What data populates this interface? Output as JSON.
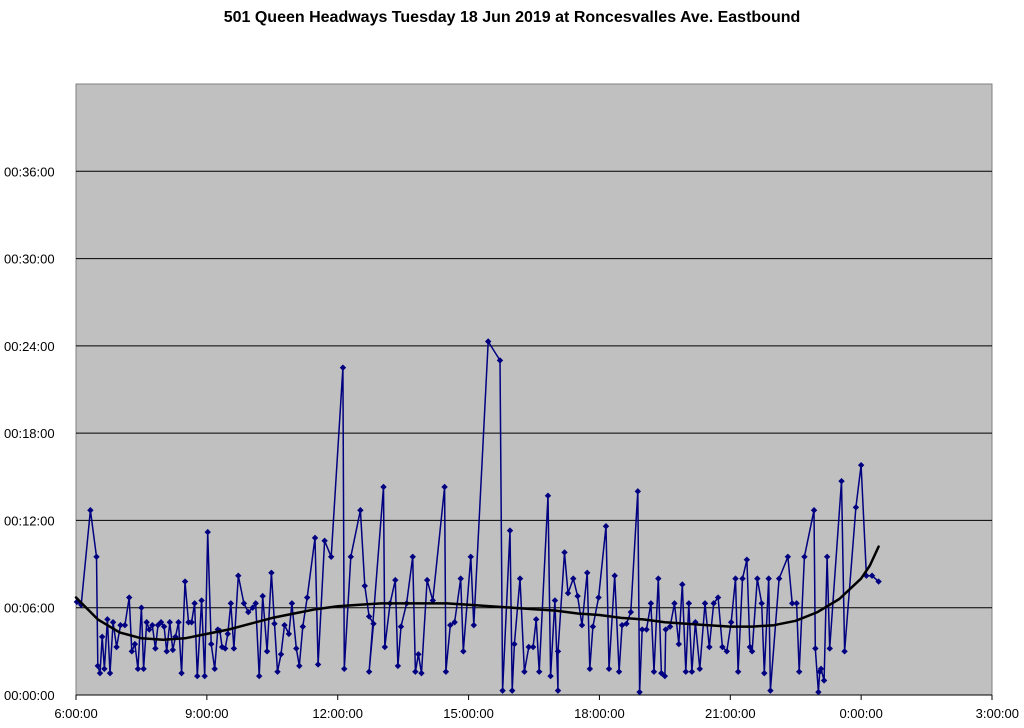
{
  "chart_data": {
    "type": "line",
    "title": "501 Queen Headways Tuesday 18 Jun 2019 at Roncesvalles Ave. Eastbound",
    "xlabel": "",
    "ylabel": "",
    "x_unit": "hours",
    "y_unit": "minutes",
    "xlim": [
      6,
      27
    ],
    "ylim": [
      0,
      42
    ],
    "x_ticks": [
      {
        "value": 6,
        "label": "6:00:00"
      },
      {
        "value": 9,
        "label": "9:00:00"
      },
      {
        "value": 12,
        "label": "12:00:00"
      },
      {
        "value": 15,
        "label": "15:00:00"
      },
      {
        "value": 18,
        "label": "18:00:00"
      },
      {
        "value": 21,
        "label": "21:00:00"
      },
      {
        "value": 24,
        "label": "0:00:00"
      },
      {
        "value": 27,
        "label": "3:00:00"
      }
    ],
    "y_ticks": [
      {
        "value": 0,
        "label": "00:00:00"
      },
      {
        "value": 6,
        "label": "00:06:00"
      },
      {
        "value": 12,
        "label": "00:12:00"
      },
      {
        "value": 18,
        "label": "00:18:00"
      },
      {
        "value": 24,
        "label": "00:24:00"
      },
      {
        "value": 30,
        "label": "00:30:00"
      },
      {
        "value": 36,
        "label": "00:36:00"
      }
    ],
    "grid": true,
    "plot_bg": "#c0c0c0",
    "series": [
      {
        "style": "headways",
        "color": "#000080",
        "points": [
          [
            6.02,
            6.4
          ],
          [
            6.12,
            6.2
          ],
          [
            6.33,
            12.7
          ],
          [
            6.47,
            9.5
          ],
          [
            6.5,
            2.0
          ],
          [
            6.55,
            1.5
          ],
          [
            6.6,
            4.0
          ],
          [
            6.65,
            1.8
          ],
          [
            6.72,
            5.2
          ],
          [
            6.78,
            1.5
          ],
          [
            6.85,
            5.0
          ],
          [
            6.93,
            3.3
          ],
          [
            7.02,
            4.8
          ],
          [
            7.12,
            4.8
          ],
          [
            7.22,
            6.7
          ],
          [
            7.28,
            3.0
          ],
          [
            7.35,
            3.5
          ],
          [
            7.42,
            1.8
          ],
          [
            7.5,
            6.0
          ],
          [
            7.55,
            1.8
          ],
          [
            7.62,
            5.0
          ],
          [
            7.68,
            4.5
          ],
          [
            7.75,
            4.8
          ],
          [
            7.82,
            3.2
          ],
          [
            7.88,
            4.8
          ],
          [
            7.95,
            5.0
          ],
          [
            8.02,
            4.7
          ],
          [
            8.08,
            3.0
          ],
          [
            8.15,
            5.0
          ],
          [
            8.22,
            3.1
          ],
          [
            8.28,
            4.0
          ],
          [
            8.35,
            5.0
          ],
          [
            8.42,
            1.5
          ],
          [
            8.5,
            7.8
          ],
          [
            8.58,
            5.0
          ],
          [
            8.65,
            5.0
          ],
          [
            8.72,
            6.3
          ],
          [
            8.78,
            1.3
          ],
          [
            8.88,
            6.5
          ],
          [
            8.95,
            1.3
          ],
          [
            9.02,
            11.2
          ],
          [
            9.1,
            3.5
          ],
          [
            9.18,
            1.8
          ],
          [
            9.25,
            4.5
          ],
          [
            9.3,
            4.4
          ],
          [
            9.35,
            3.3
          ],
          [
            9.42,
            3.2
          ],
          [
            9.48,
            4.2
          ],
          [
            9.55,
            6.3
          ],
          [
            9.62,
            3.2
          ],
          [
            9.72,
            8.2
          ],
          [
            9.85,
            6.3
          ],
          [
            9.95,
            5.7
          ],
          [
            10.05,
            6.0
          ],
          [
            10.12,
            6.3
          ],
          [
            10.2,
            1.3
          ],
          [
            10.28,
            6.8
          ],
          [
            10.38,
            3.0
          ],
          [
            10.48,
            8.4
          ],
          [
            10.55,
            4.9
          ],
          [
            10.62,
            1.6
          ],
          [
            10.7,
            2.8
          ],
          [
            10.78,
            4.8
          ],
          [
            10.88,
            4.2
          ],
          [
            10.95,
            6.3
          ],
          [
            11.05,
            3.2
          ],
          [
            11.12,
            2.0
          ],
          [
            11.2,
            4.7
          ],
          [
            11.3,
            6.7
          ],
          [
            11.48,
            10.8
          ],
          [
            11.55,
            2.1
          ],
          [
            11.7,
            10.6
          ],
          [
            11.85,
            9.5
          ],
          [
            12.12,
            22.5
          ],
          [
            12.15,
            1.8
          ],
          [
            12.3,
            9.5
          ],
          [
            12.52,
            12.7
          ],
          [
            12.62,
            7.5
          ],
          [
            12.72,
            5.4
          ],
          [
            12.82,
            4.9
          ],
          [
            12.72,
            1.6
          ],
          [
            13.05,
            14.3
          ],
          [
            13.08,
            3.3
          ],
          [
            13.2,
            6.3
          ],
          [
            13.32,
            7.9
          ],
          [
            13.38,
            2.0
          ],
          [
            13.45,
            4.7
          ],
          [
            13.58,
            6.3
          ],
          [
            13.72,
            9.5
          ],
          [
            13.78,
            1.6
          ],
          [
            13.85,
            2.8
          ],
          [
            13.92,
            1.5
          ],
          [
            14.05,
            7.9
          ],
          [
            14.18,
            6.5
          ],
          [
            14.45,
            14.3
          ],
          [
            14.48,
            1.6
          ],
          [
            14.58,
            4.8
          ],
          [
            14.68,
            5.0
          ],
          [
            14.82,
            8.0
          ],
          [
            14.88,
            3.0
          ],
          [
            15.05,
            9.5
          ],
          [
            15.12,
            4.8
          ],
          [
            15.45,
            24.3
          ],
          [
            15.72,
            23.0
          ],
          [
            15.78,
            0.3
          ],
          [
            15.95,
            11.3
          ],
          [
            16.0,
            0.3
          ],
          [
            16.05,
            3.5
          ],
          [
            16.18,
            8.0
          ],
          [
            16.28,
            1.6
          ],
          [
            16.38,
            3.3
          ],
          [
            16.48,
            3.3
          ],
          [
            16.55,
            5.2
          ],
          [
            16.62,
            1.6
          ],
          [
            16.82,
            13.7
          ],
          [
            16.88,
            1.3
          ],
          [
            16.98,
            6.5
          ],
          [
            17.05,
            0.3
          ],
          [
            17.05,
            3.0
          ],
          [
            17.2,
            9.8
          ],
          [
            17.28,
            7.0
          ],
          [
            17.4,
            8.0
          ],
          [
            17.5,
            6.8
          ],
          [
            17.6,
            4.8
          ],
          [
            17.72,
            8.4
          ],
          [
            17.78,
            1.8
          ],
          [
            17.85,
            4.7
          ],
          [
            17.98,
            6.7
          ],
          [
            18.15,
            11.6
          ],
          [
            18.22,
            1.8
          ],
          [
            18.35,
            8.2
          ],
          [
            18.45,
            1.6
          ],
          [
            18.52,
            4.8
          ],
          [
            18.62,
            4.9
          ],
          [
            18.72,
            5.7
          ],
          [
            18.88,
            14.0
          ],
          [
            18.92,
            0.2
          ],
          [
            18.98,
            4.5
          ],
          [
            19.08,
            4.5
          ],
          [
            19.18,
            6.3
          ],
          [
            19.25,
            1.6
          ],
          [
            19.35,
            8.0
          ],
          [
            19.42,
            1.5
          ],
          [
            19.5,
            1.3
          ],
          [
            19.52,
            4.5
          ],
          [
            19.62,
            4.7
          ],
          [
            19.72,
            6.3
          ],
          [
            19.82,
            3.5
          ],
          [
            19.9,
            7.6
          ],
          [
            19.98,
            1.6
          ],
          [
            20.05,
            6.3
          ],
          [
            20.12,
            1.6
          ],
          [
            20.2,
            5.0
          ],
          [
            20.3,
            1.8
          ],
          [
            20.42,
            6.3
          ],
          [
            20.52,
            3.3
          ],
          [
            20.62,
            6.3
          ],
          [
            20.72,
            6.7
          ],
          [
            20.82,
            3.3
          ],
          [
            20.92,
            3.0
          ],
          [
            21.02,
            5.0
          ],
          [
            21.12,
            8.0
          ],
          [
            21.18,
            1.6
          ],
          [
            21.28,
            8.0
          ],
          [
            21.38,
            9.3
          ],
          [
            21.45,
            3.3
          ],
          [
            21.5,
            3.0
          ],
          [
            21.62,
            8.0
          ],
          [
            21.72,
            6.3
          ],
          [
            21.78,
            1.5
          ],
          [
            21.88,
            8.0
          ],
          [
            21.92,
            0.3
          ],
          [
            22.12,
            8.0
          ],
          [
            22.32,
            9.5
          ],
          [
            22.42,
            6.3
          ],
          [
            22.52,
            6.3
          ],
          [
            22.58,
            1.6
          ],
          [
            22.7,
            9.5
          ],
          [
            22.92,
            12.7
          ],
          [
            22.95,
            3.2
          ],
          [
            23.02,
            0.2
          ],
          [
            23.05,
            1.6
          ],
          [
            23.08,
            1.8
          ],
          [
            23.15,
            1.0
          ],
          [
            23.22,
            9.5
          ],
          [
            23.28,
            3.2
          ],
          [
            23.55,
            14.7
          ],
          [
            23.62,
            3.0
          ],
          [
            23.88,
            12.9
          ],
          [
            24.0,
            15.8
          ],
          [
            24.12,
            8.2
          ],
          [
            24.25,
            8.2
          ],
          [
            24.4,
            7.8
          ]
        ]
      },
      {
        "style": "trend",
        "color": "#000000",
        "points": [
          [
            6.0,
            6.7
          ],
          [
            6.5,
            5.2
          ],
          [
            7.0,
            4.3
          ],
          [
            7.5,
            3.9
          ],
          [
            8.0,
            3.8
          ],
          [
            8.5,
            3.9
          ],
          [
            9.0,
            4.2
          ],
          [
            9.5,
            4.5
          ],
          [
            10.0,
            4.9
          ],
          [
            10.5,
            5.3
          ],
          [
            11.0,
            5.6
          ],
          [
            11.5,
            5.9
          ],
          [
            12.0,
            6.1
          ],
          [
            12.5,
            6.2
          ],
          [
            13.0,
            6.3
          ],
          [
            13.5,
            6.3
          ],
          [
            14.0,
            6.3
          ],
          [
            14.5,
            6.3
          ],
          [
            15.0,
            6.2
          ],
          [
            15.5,
            6.1
          ],
          [
            16.0,
            6.0
          ],
          [
            16.5,
            5.9
          ],
          [
            17.0,
            5.8
          ],
          [
            17.5,
            5.6
          ],
          [
            18.0,
            5.5
          ],
          [
            18.5,
            5.3
          ],
          [
            19.0,
            5.2
          ],
          [
            19.5,
            5.0
          ],
          [
            20.0,
            4.9
          ],
          [
            20.5,
            4.8
          ],
          [
            21.0,
            4.7
          ],
          [
            21.5,
            4.7
          ],
          [
            22.0,
            4.8
          ],
          [
            22.5,
            5.1
          ],
          [
            23.0,
            5.7
          ],
          [
            23.5,
            6.6
          ],
          [
            24.0,
            8.0
          ],
          [
            24.2,
            8.9
          ],
          [
            24.4,
            10.2
          ]
        ]
      }
    ]
  }
}
